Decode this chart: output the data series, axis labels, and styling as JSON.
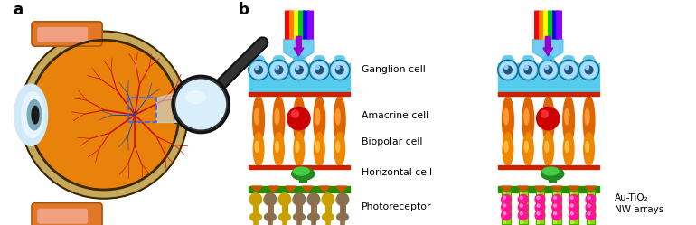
{
  "panel_a_label": "a",
  "panel_b_label": "b",
  "cell_labels": [
    "Ganglion cell",
    "Amacrine cell",
    "Biopolar cell",
    "Horizontal cell",
    "Photoreceptor"
  ],
  "au_tio2_line1": "Au-TiO₂",
  "au_tio2_line2": "NW arrays",
  "background": "#ffffff",
  "eye_orange": "#E8820A",
  "eye_tan": "#C8A85A",
  "eye_dark": "#3A2800",
  "cornea_blue": "#BEE0F0",
  "muscle_orange": "#E07828",
  "muscle_pink": "#F0A080",
  "vessel_red": "#CC1100",
  "vessel_blue": "#2244BB",
  "nerve_yellow": "#E8C040",
  "ganglion_cyan": "#55CCEE",
  "ganglion_cell_blue": "#88CCEE",
  "ganglion_dark": "#226688",
  "red_band": "#CC2200",
  "orange_cell": "#DD6600",
  "orange_cell2": "#EE8800",
  "amacrine_red": "#CC0000",
  "horizontal_green": "#228B22",
  "green_base": "#2A8A00",
  "photoreceptor_yellow": "#C8A000",
  "photoreceptor_brown": "#8B7050",
  "nanowire_green": "#80E000",
  "au_dot_pink": "#FF1493",
  "rainbow": [
    "#FF0000",
    "#FF7F00",
    "#FFFF00",
    "#00CC00",
    "#0000FF",
    "#8B00FF"
  ],
  "blue_arrow_fill": "#44BBEE",
  "violet_arrow": "#9900CC"
}
